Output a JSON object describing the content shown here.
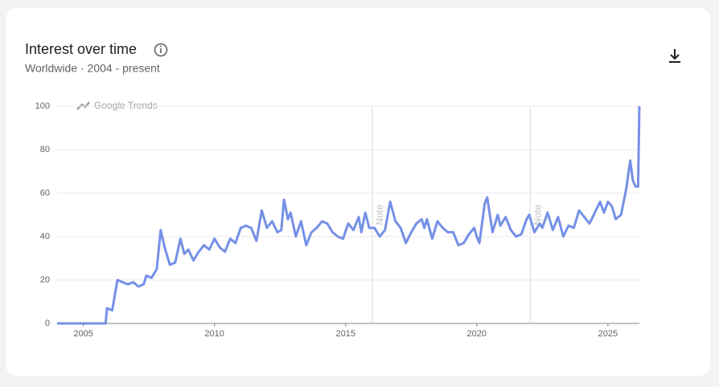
{
  "chart_data": {
    "type": "line",
    "title": "Interest over time",
    "subtitle": "Worldwide · 2004 - present",
    "watermark": "Google Trends",
    "color": "#7590e6",
    "x": [
      2004.0,
      2005.85,
      2005.9,
      2006.1,
      2006.3,
      2006.5,
      2006.7,
      2006.9,
      2007.1,
      2007.3,
      2007.4,
      2007.6,
      2007.8,
      2007.95,
      2008.1,
      2008.3,
      2008.5,
      2008.7,
      2008.85,
      2009.0,
      2009.2,
      2009.4,
      2009.6,
      2009.8,
      2010.0,
      2010.2,
      2010.4,
      2010.6,
      2010.8,
      2011.0,
      2011.2,
      2011.4,
      2011.6,
      2011.8,
      2012.0,
      2012.2,
      2012.4,
      2012.55,
      2012.65,
      2012.8,
      2012.9,
      2013.1,
      2013.3,
      2013.5,
      2013.7,
      2013.9,
      2014.1,
      2014.3,
      2014.5,
      2014.7,
      2014.9,
      2015.1,
      2015.3,
      2015.5,
      2015.6,
      2015.75,
      2015.9,
      2016.1,
      2016.3,
      2016.5,
      2016.7,
      2016.9,
      2017.1,
      2017.3,
      2017.5,
      2017.7,
      2017.9,
      2018.0,
      2018.1,
      2018.3,
      2018.5,
      2018.7,
      2018.9,
      2019.1,
      2019.3,
      2019.5,
      2019.7,
      2019.9,
      2020.0,
      2020.1,
      2020.3,
      2020.4,
      2020.6,
      2020.8,
      2020.9,
      2021.1,
      2021.3,
      2021.5,
      2021.7,
      2021.9,
      2022.0,
      2022.2,
      2022.4,
      2022.5,
      2022.7,
      2022.9,
      2023.1,
      2023.3,
      2023.5,
      2023.7,
      2023.9,
      2024.1,
      2024.3,
      2024.5,
      2024.7,
      2024.85,
      2025.0,
      2025.15,
      2025.3,
      2025.5,
      2025.7,
      2025.85,
      2025.95,
      2026.05,
      2026.15,
      2026.2
    ],
    "values": [
      0,
      0,
      7,
      6,
      20,
      19,
      18,
      19,
      17,
      18,
      22,
      21,
      25,
      43,
      35,
      27,
      28,
      39,
      32,
      34,
      29,
      33,
      36,
      34,
      39,
      35,
      33,
      39,
      37,
      44,
      45,
      44,
      38,
      52,
      44,
      47,
      42,
      43,
      57,
      48,
      51,
      40,
      47,
      36,
      42,
      44,
      47,
      46,
      42,
      40,
      39,
      46,
      43,
      49,
      42,
      51,
      44,
      44,
      40,
      43,
      56,
      47,
      44,
      37,
      42,
      46,
      48,
      44,
      48,
      39,
      47,
      44,
      42,
      42,
      36,
      37,
      41,
      44,
      40,
      37,
      55,
      58,
      42,
      50,
      45,
      49,
      43,
      40,
      41,
      48,
      50,
      42,
      46,
      44,
      51,
      43,
      49,
      40,
      45,
      44,
      52,
      49,
      46,
      51,
      56,
      51,
      56,
      54,
      48,
      50,
      62,
      75,
      66,
      63,
      63,
      100
    ],
    "xlim": [
      2004,
      2026.2
    ],
    "xticks": [
      2005,
      2010,
      2015,
      2020,
      2025
    ],
    "ylim": [
      0,
      100
    ],
    "yticks": [
      0,
      20,
      40,
      60,
      80,
      100
    ],
    "grid": true,
    "annotations": [
      {
        "x": 2016.02,
        "label": "Note"
      },
      {
        "x": 2022.04,
        "label": "Note"
      }
    ]
  }
}
